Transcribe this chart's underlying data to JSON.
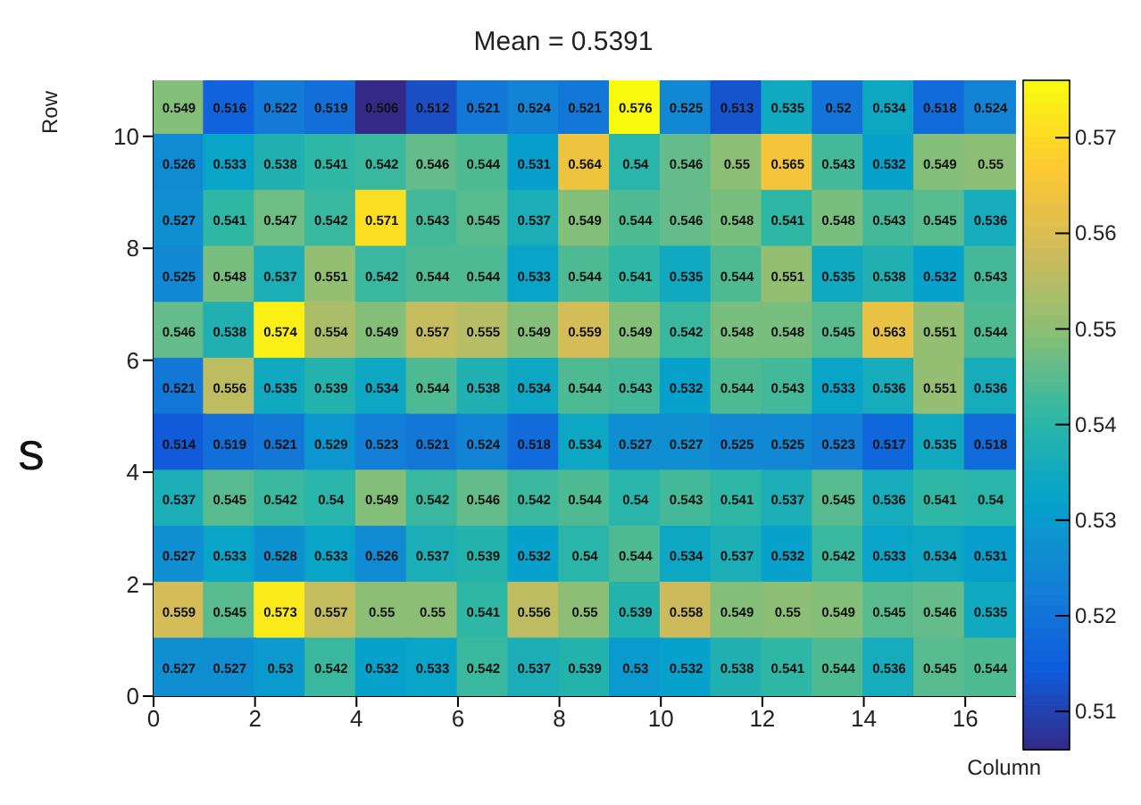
{
  "chart_data": {
    "type": "heatmap",
    "title": "Mean = 0.5391",
    "xlabel": "Column",
    "ylabel": "Row",
    "xlim": [
      0,
      17
    ],
    "xticks": [
      0,
      2,
      4,
      6,
      8,
      10,
      12,
      14,
      16
    ],
    "ylim": [
      0,
      11
    ],
    "yticks": [
      0,
      2,
      4,
      6,
      8,
      10
    ],
    "clim": [
      0.506,
      0.576
    ],
    "cticks": [
      0.51,
      0.52,
      0.53,
      0.54,
      0.55,
      0.56,
      0.57
    ],
    "data_labels": true,
    "annotations": [
      "s"
    ],
    "cells": [
      [
        0.549,
        0.516,
        0.522,
        0.519,
        0.506,
        0.512,
        0.521,
        0.524,
        0.521,
        0.576,
        0.525,
        0.513,
        0.535,
        0.52,
        0.534,
        0.518,
        0.524
      ],
      [
        0.526,
        0.533,
        0.538,
        0.541,
        0.542,
        0.546,
        0.544,
        0.531,
        0.564,
        0.54,
        0.546,
        0.55,
        0.565,
        0.543,
        0.532,
        0.549,
        0.55
      ],
      [
        0.527,
        0.541,
        0.547,
        0.542,
        0.571,
        0.543,
        0.545,
        0.537,
        0.549,
        0.544,
        0.546,
        0.548,
        0.541,
        0.548,
        0.543,
        0.545,
        0.536
      ],
      [
        0.525,
        0.548,
        0.537,
        0.551,
        0.542,
        0.544,
        0.544,
        0.533,
        0.544,
        0.541,
        0.535,
        0.544,
        0.551,
        0.535,
        0.538,
        0.532,
        0.543
      ],
      [
        0.546,
        0.538,
        0.574,
        0.554,
        0.549,
        0.557,
        0.555,
        0.549,
        0.559,
        0.549,
        0.542,
        0.548,
        0.548,
        0.545,
        0.563,
        0.551,
        0.544
      ],
      [
        0.521,
        0.556,
        0.535,
        0.539,
        0.534,
        0.544,
        0.538,
        0.534,
        0.544,
        0.543,
        0.532,
        0.544,
        0.543,
        0.533,
        0.536,
        0.551,
        0.536
      ],
      [
        0.514,
        0.519,
        0.521,
        0.529,
        0.523,
        0.521,
        0.524,
        0.518,
        0.534,
        0.527,
        0.527,
        0.525,
        0.525,
        0.523,
        0.517,
        0.535,
        0.518
      ],
      [
        0.537,
        0.545,
        0.542,
        0.54,
        0.549,
        0.542,
        0.546,
        0.542,
        0.544,
        0.54,
        0.543,
        0.541,
        0.537,
        0.545,
        0.536,
        0.541,
        0.54
      ],
      [
        0.527,
        0.533,
        0.528,
        0.533,
        0.526,
        0.537,
        0.539,
        0.532,
        0.54,
        0.544,
        0.534,
        0.537,
        0.532,
        0.542,
        0.533,
        0.534,
        0.531
      ],
      [
        0.559,
        0.545,
        0.573,
        0.557,
        0.55,
        0.55,
        0.541,
        0.556,
        0.55,
        0.539,
        0.558,
        0.549,
        0.55,
        0.549,
        0.545,
        0.546,
        0.535
      ],
      [
        0.527,
        0.527,
        0.53,
        0.542,
        0.532,
        0.533,
        0.542,
        0.537,
        0.539,
        0.53,
        0.532,
        0.538,
        0.541,
        0.544,
        0.536,
        0.545,
        0.544
      ]
    ]
  }
}
